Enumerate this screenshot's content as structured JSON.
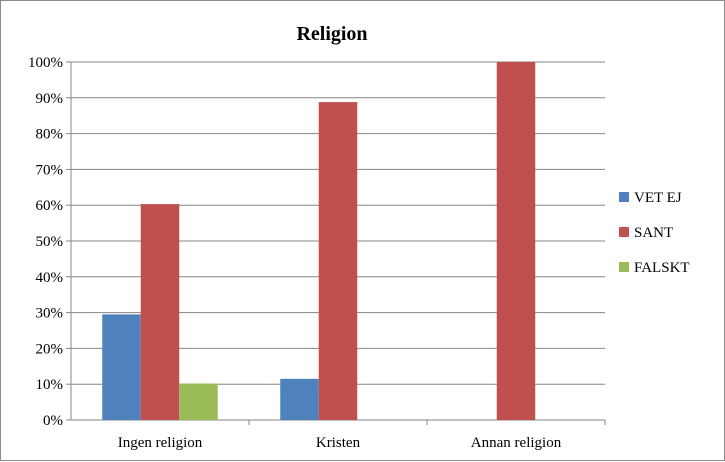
{
  "chart_data": {
    "type": "bar",
    "title": "Religion",
    "categories": [
      "Ingen religion",
      "Kristen",
      "Annan religion"
    ],
    "series": [
      {
        "name": "VET EJ",
        "color": "#4f81bd",
        "values": [
          29.5,
          11.5,
          0
        ]
      },
      {
        "name": "SANT",
        "color": "#c0504d",
        "values": [
          60.3,
          88.8,
          100
        ]
      },
      {
        "name": "FALSKT",
        "color": "#9bbb59",
        "values": [
          10.2,
          0,
          0
        ]
      }
    ],
    "yticks": [
      "0%",
      "10%",
      "20%",
      "30%",
      "40%",
      "50%",
      "60%",
      "70%",
      "80%",
      "90%",
      "100%"
    ],
    "ylim": [
      0,
      100
    ],
    "grid": true,
    "legend_position": "right"
  }
}
